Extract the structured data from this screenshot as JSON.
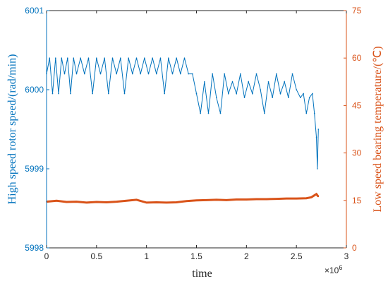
{
  "chart_data": {
    "type": "line",
    "title": "",
    "xlabel": "time",
    "x_multiplier_label": "×10",
    "x_multiplier_exp": "6",
    "ylabel_left": "High speed rotor speed/(rad/min)",
    "ylabel_right": "Low speed bearing temperature/(℃)",
    "xlim": [
      0,
      3000000
    ],
    "ylim_left": [
      5998,
      6001
    ],
    "ylim_right": [
      0,
      75
    ],
    "x_ticks": [
      0,
      500000,
      1000000,
      1500000,
      2000000,
      2500000,
      3000000
    ],
    "x_tick_labels": [
      "0",
      "0.5",
      "1",
      "1.5",
      "2",
      "2.5",
      "3"
    ],
    "y_left_ticks": [
      5998,
      5999,
      6000,
      6001
    ],
    "y_left_tick_labels": [
      "5998",
      "5999",
      "6000",
      "6001"
    ],
    "y_right_ticks": [
      0,
      15,
      30,
      45,
      60,
      75
    ],
    "y_right_tick_labels": [
      "0",
      "15",
      "30",
      "45",
      "60",
      "75"
    ],
    "grid": false,
    "colors": {
      "left_axis": "#0072BD",
      "right_axis": "#D95319",
      "axes": "#262626",
      "rotor_series": "#0072BD",
      "temperature_series": "#D95319"
    },
    "series": [
      {
        "axis": "left",
        "x": [
          0,
          30000,
          60000,
          90000,
          120000,
          150000,
          180000,
          210000,
          240000,
          270000,
          300000,
          340000,
          380000,
          420000,
          460000,
          500000,
          540000,
          580000,
          620000,
          660000,
          700000,
          740000,
          780000,
          820000,
          860000,
          900000,
          940000,
          980000,
          1020000,
          1060000,
          1100000,
          1140000,
          1180000,
          1220000,
          1260000,
          1300000,
          1340000,
          1380000,
          1420000,
          1460000,
          1500000,
          1540000,
          1580000,
          1620000,
          1660000,
          1700000,
          1740000,
          1780000,
          1820000,
          1860000,
          1900000,
          1940000,
          1980000,
          2020000,
          2060000,
          2100000,
          2140000,
          2180000,
          2220000,
          2260000,
          2300000,
          2340000,
          2380000,
          2420000,
          2460000,
          2500000,
          2540000,
          2570000,
          2600000,
          2630000,
          2660000,
          2680000,
          2700000,
          2710000,
          2720000
        ],
        "y": [
          6000.2,
          6000.4,
          5999.95,
          6000.4,
          5999.95,
          6000.4,
          6000.2,
          6000.4,
          5999.95,
          6000.4,
          6000.2,
          6000.4,
          6000.2,
          6000.4,
          5999.95,
          6000.4,
          6000.2,
          6000.4,
          5999.95,
          6000.4,
          6000.2,
          6000.4,
          5999.95,
          6000.4,
          6000.2,
          6000.4,
          6000.2,
          6000.4,
          6000.2,
          6000.4,
          6000.2,
          6000.4,
          5999.95,
          6000.4,
          6000.2,
          6000.4,
          6000.2,
          6000.4,
          6000.2,
          6000.2,
          5999.95,
          5999.7,
          6000.1,
          5999.7,
          6000.2,
          5999.9,
          5999.7,
          6000.2,
          5999.95,
          6000.1,
          5999.95,
          6000.2,
          5999.9,
          6000.1,
          5999.95,
          6000.2,
          6000.0,
          5999.7,
          6000.1,
          5999.9,
          6000.2,
          5999.95,
          6000.1,
          5999.9,
          6000.2,
          6000.0,
          5999.9,
          5999.95,
          5999.7,
          5999.9,
          5999.95,
          5999.7,
          5999.4,
          5999.0,
          5999.5
        ]
      },
      {
        "axis": "right",
        "x": [
          0,
          100000,
          200000,
          300000,
          400000,
          500000,
          600000,
          700000,
          800000,
          900000,
          1000000,
          1100000,
          1200000,
          1300000,
          1400000,
          1500000,
          1600000,
          1700000,
          1800000,
          1900000,
          2000000,
          2100000,
          2200000,
          2300000,
          2400000,
          2500000,
          2600000,
          2650000,
          2700000,
          2720000
        ],
        "y": [
          14.6,
          14.9,
          14.5,
          14.6,
          14.3,
          14.5,
          14.4,
          14.6,
          14.9,
          15.2,
          14.3,
          14.4,
          14.3,
          14.4,
          14.8,
          15.0,
          15.1,
          15.2,
          15.1,
          15.3,
          15.3,
          15.4,
          15.4,
          15.5,
          15.6,
          15.6,
          15.7,
          16.0,
          17.0,
          16.2
        ]
      }
    ]
  }
}
